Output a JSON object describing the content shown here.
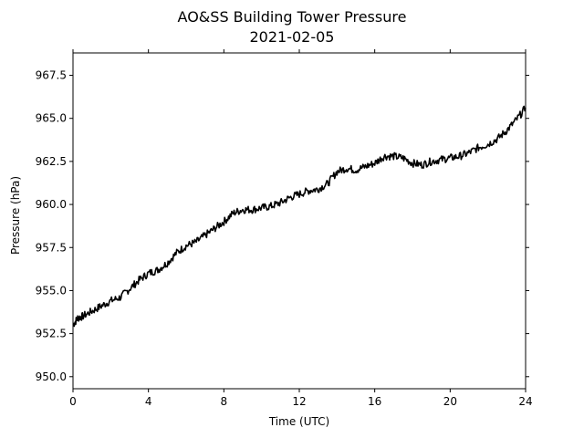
{
  "chart_data": {
    "type": "line",
    "title": "AO&SS Building Tower Pressure",
    "subtitle": "2021-02-05",
    "xlabel": "Time (UTC)",
    "ylabel": "Pressure (hPa)",
    "xlim": [
      0,
      24
    ],
    "ylim": [
      949.3,
      968.8
    ],
    "xticks": [
      0,
      4,
      8,
      12,
      16,
      20,
      24
    ],
    "yticks": [
      950.0,
      952.5,
      955.0,
      957.5,
      960.0,
      962.5,
      965.0,
      967.5
    ],
    "grid": false,
    "legend": "none",
    "line_color": "#000000",
    "series": [
      {
        "x": [
          0,
          0.25,
          0.5,
          1,
          1.5,
          2,
          2.5,
          3,
          3.5,
          4,
          4.5,
          5,
          5.5,
          6,
          6.5,
          7,
          7.5,
          8,
          8.5,
          9,
          9.5,
          10,
          10.5,
          11,
          11.5,
          12,
          12.5,
          13,
          13.5,
          14,
          14.5,
          15,
          15.5,
          16,
          16.5,
          17,
          17.5,
          18,
          18.5,
          19,
          19.5,
          20,
          20.5,
          21,
          21.5,
          22,
          22.5,
          23,
          23.5,
          24
        ],
        "y": [
          953.0,
          953.4,
          953.5,
          953.8,
          954.1,
          954.4,
          954.6,
          955.1,
          955.6,
          956.0,
          956.2,
          956.6,
          957.2,
          957.6,
          957.8,
          958.2,
          958.6,
          959.0,
          959.5,
          959.7,
          959.7,
          959.8,
          959.9,
          960.1,
          960.4,
          960.6,
          960.8,
          960.9,
          961.2,
          961.9,
          962.1,
          962.0,
          962.2,
          962.4,
          962.8,
          962.8,
          962.7,
          962.4,
          962.3,
          962.5,
          962.6,
          962.7,
          962.8,
          963.0,
          963.3,
          963.5,
          963.8,
          964.3,
          964.9,
          965.6
        ]
      }
    ]
  }
}
